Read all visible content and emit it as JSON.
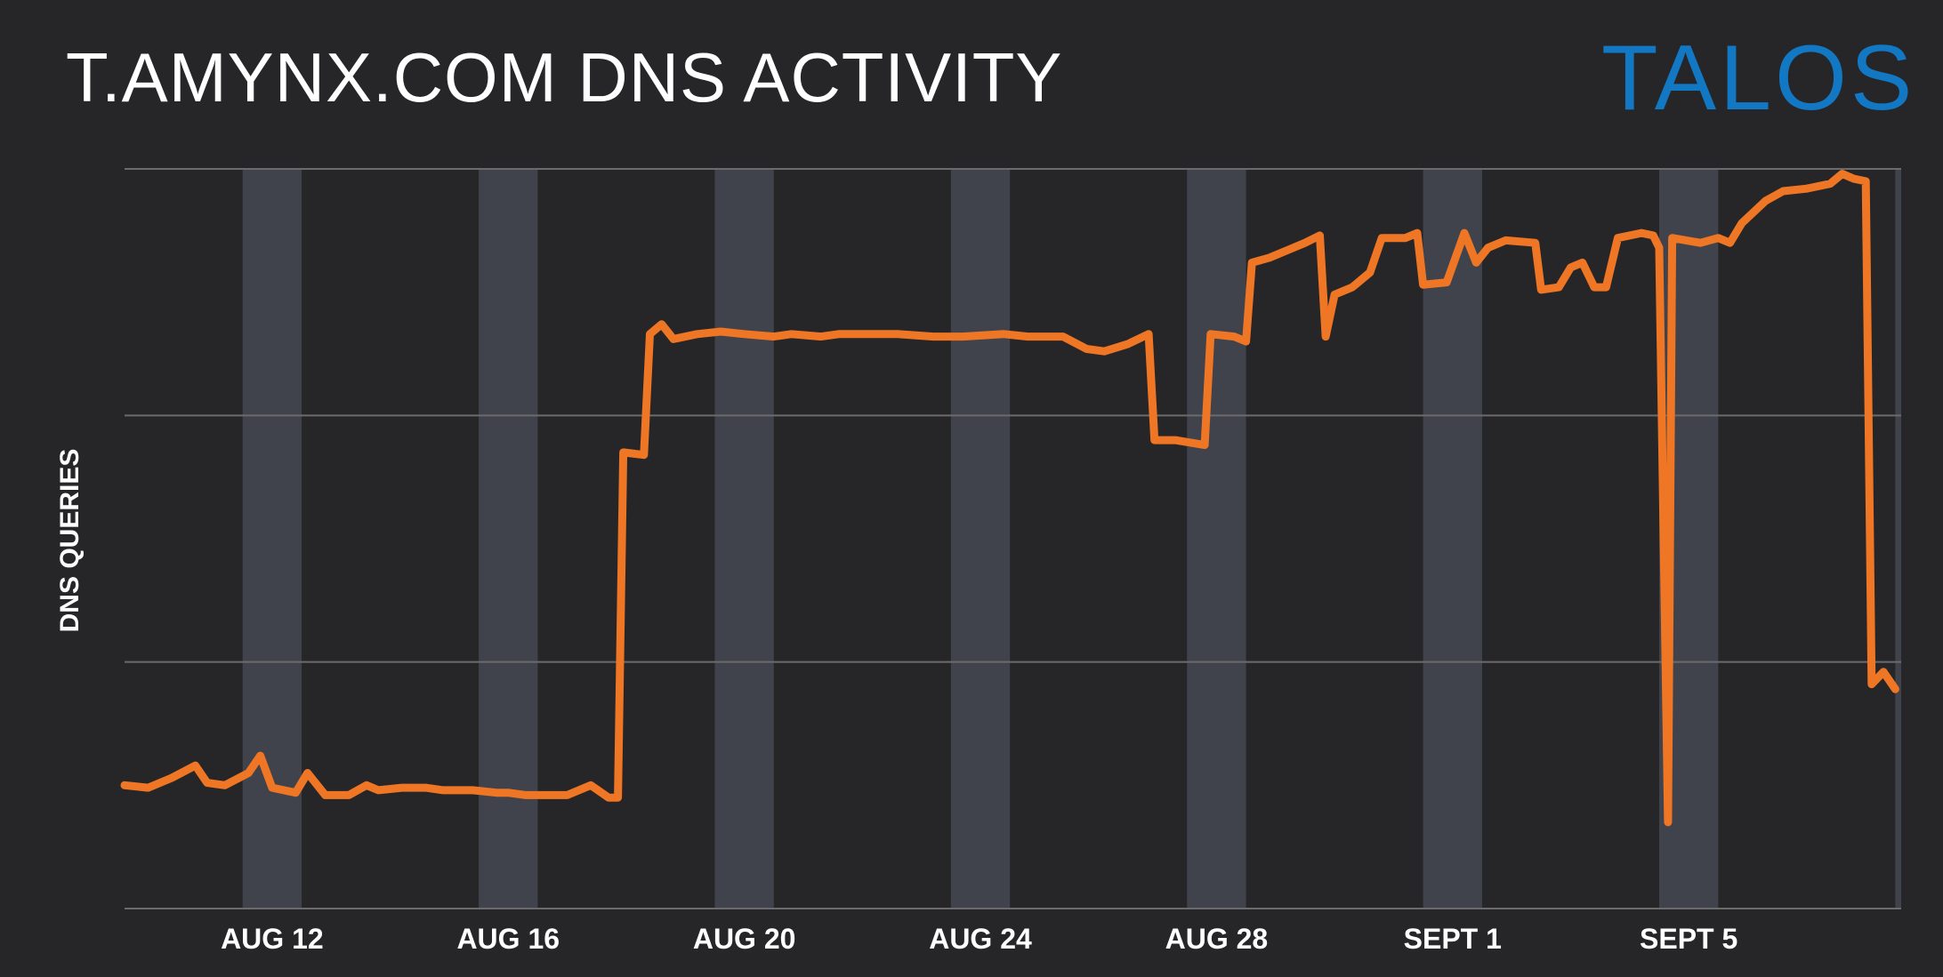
{
  "colors": {
    "background": "#262628",
    "band": "#40434b",
    "grid": "#6b6b6e",
    "line": "#ee7624",
    "brand": "#1278c4"
  },
  "brand": {
    "name": "TALOS",
    "icon": "talos-logo"
  },
  "chart_data": {
    "type": "line",
    "title": "T.AMYNX.COM DNS ACTIVITY",
    "ylabel": "DNS QUERIES",
    "xlabel": "",
    "x_ticks": [
      "AUG 12",
      "AUG 16",
      "AUG 20",
      "AUG 24",
      "AUG 28",
      "SEPT 1",
      "SEPT 5"
    ],
    "x_tick_days": [
      2,
      6,
      10,
      14,
      18,
      22,
      26
    ],
    "xlim": [
      -0.5,
      29.6
    ],
    "ylim": [
      0,
      3
    ],
    "y_ticks_labeled": false,
    "y_gridlines": [
      1,
      2,
      3
    ],
    "grid": "horizontal",
    "shaded_day_bands": true,
    "legend": "none",
    "series": [
      {
        "values": [
          [
            -0.5,
            0.5
          ],
          [
            -0.1,
            0.49
          ],
          [
            0.3,
            0.53
          ],
          [
            0.7,
            0.58
          ],
          [
            0.9,
            0.51
          ],
          [
            1.2,
            0.5
          ],
          [
            1.6,
            0.55
          ],
          [
            1.8,
            0.62
          ],
          [
            2.0,
            0.49
          ],
          [
            2.4,
            0.47
          ],
          [
            2.6,
            0.55
          ],
          [
            2.9,
            0.46
          ],
          [
            3.3,
            0.46
          ],
          [
            3.6,
            0.5
          ],
          [
            3.8,
            0.48
          ],
          [
            4.2,
            0.49
          ],
          [
            4.6,
            0.49
          ],
          [
            4.9,
            0.48
          ],
          [
            5.4,
            0.48
          ],
          [
            5.8,
            0.47
          ],
          [
            6.0,
            0.47
          ],
          [
            6.3,
            0.46
          ],
          [
            6.6,
            0.46
          ],
          [
            7.0,
            0.46
          ],
          [
            7.4,
            0.5
          ],
          [
            7.7,
            0.45
          ],
          [
            7.86,
            0.45
          ],
          [
            7.95,
            1.85
          ],
          [
            8.3,
            1.84
          ],
          [
            8.4,
            2.33
          ],
          [
            8.6,
            2.37
          ],
          [
            8.8,
            2.31
          ],
          [
            9.2,
            2.33
          ],
          [
            9.6,
            2.34
          ],
          [
            10.0,
            2.33
          ],
          [
            10.5,
            2.32
          ],
          [
            10.8,
            2.33
          ],
          [
            11.3,
            2.32
          ],
          [
            11.6,
            2.33
          ],
          [
            12.2,
            2.33
          ],
          [
            12.6,
            2.33
          ],
          [
            13.2,
            2.32
          ],
          [
            13.7,
            2.32
          ],
          [
            14.4,
            2.33
          ],
          [
            14.8,
            2.32
          ],
          [
            15.4,
            2.32
          ],
          [
            15.8,
            2.27
          ],
          [
            16.1,
            2.26
          ],
          [
            16.5,
            2.29
          ],
          [
            16.85,
            2.33
          ],
          [
            16.95,
            1.9
          ],
          [
            17.3,
            1.9
          ],
          [
            17.8,
            1.88
          ],
          [
            17.9,
            2.33
          ],
          [
            18.3,
            2.32
          ],
          [
            18.5,
            2.3
          ],
          [
            18.6,
            2.62
          ],
          [
            18.9,
            2.64
          ],
          [
            19.2,
            2.67
          ],
          [
            19.5,
            2.7
          ],
          [
            19.75,
            2.73
          ],
          [
            19.85,
            2.32
          ],
          [
            20.0,
            2.49
          ],
          [
            20.3,
            2.52
          ],
          [
            20.6,
            2.58
          ],
          [
            20.8,
            2.72
          ],
          [
            21.2,
            2.72
          ],
          [
            21.4,
            2.74
          ],
          [
            21.5,
            2.53
          ],
          [
            21.9,
            2.54
          ],
          [
            22.2,
            2.74
          ],
          [
            22.4,
            2.62
          ],
          [
            22.6,
            2.68
          ],
          [
            22.9,
            2.71
          ],
          [
            23.4,
            2.7
          ],
          [
            23.5,
            2.51
          ],
          [
            23.8,
            2.52
          ],
          [
            24.0,
            2.6
          ],
          [
            24.2,
            2.62
          ],
          [
            24.4,
            2.52
          ],
          [
            24.6,
            2.52
          ],
          [
            24.8,
            2.72
          ],
          [
            25.2,
            2.74
          ],
          [
            25.4,
            2.73
          ],
          [
            25.5,
            2.68
          ],
          [
            25.65,
            0.35
          ],
          [
            25.72,
            2.72
          ],
          [
            26.2,
            2.7
          ],
          [
            26.5,
            2.72
          ],
          [
            26.7,
            2.7
          ],
          [
            26.9,
            2.78
          ],
          [
            27.3,
            2.87
          ],
          [
            27.6,
            2.91
          ],
          [
            28.0,
            2.92
          ],
          [
            28.4,
            2.94
          ],
          [
            28.6,
            2.98
          ],
          [
            28.8,
            2.96
          ],
          [
            29.0,
            2.95
          ],
          [
            29.1,
            0.91
          ],
          [
            29.3,
            0.96
          ],
          [
            29.5,
            0.89
          ]
        ]
      }
    ]
  }
}
